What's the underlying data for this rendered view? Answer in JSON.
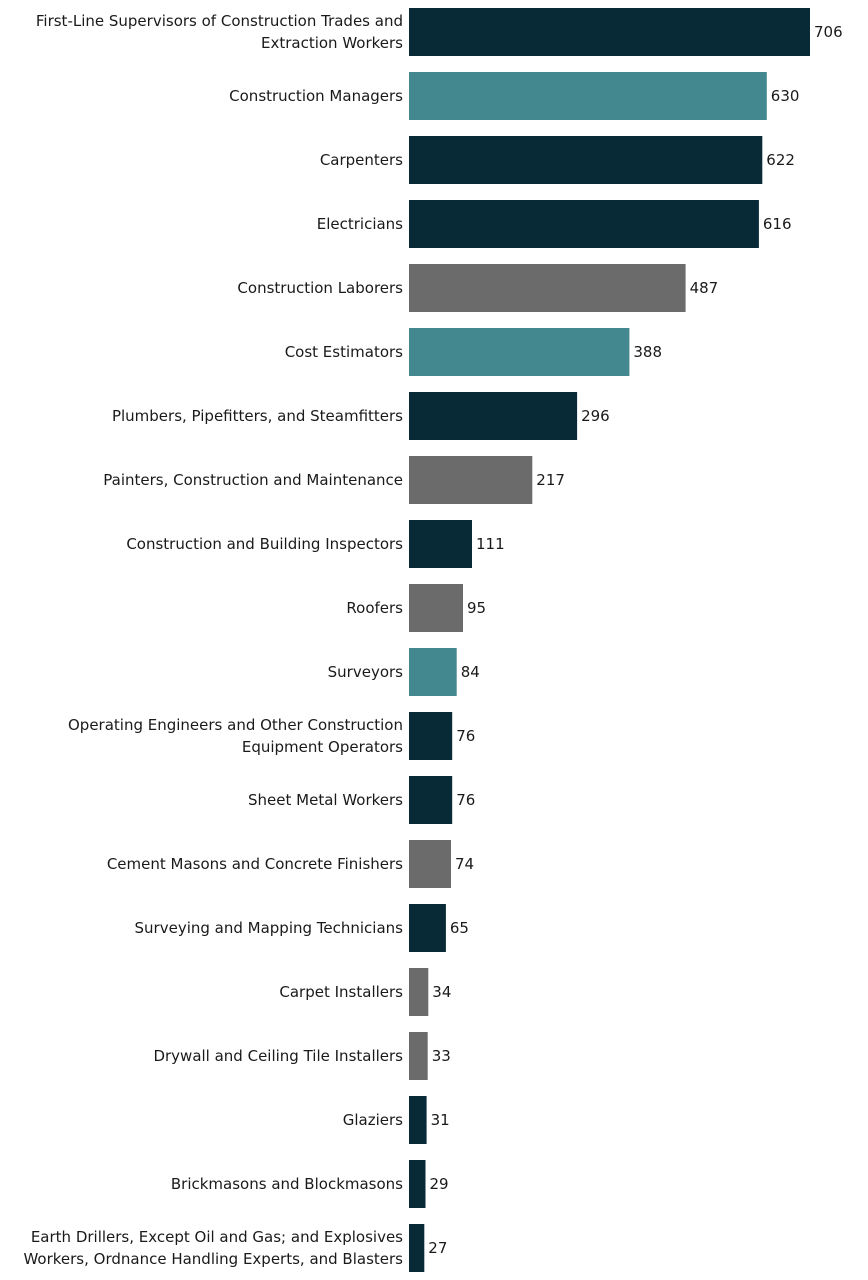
{
  "colors": {
    "dark": "#082A37",
    "teal": "#43878F",
    "gray": "#6B6B6B"
  },
  "chart_data": {
    "type": "bar",
    "orientation": "horizontal",
    "categories": [
      "First-Line Supervisors of Construction Trades and Extraction Workers",
      "Construction Managers",
      "Carpenters",
      "Electricians",
      "Construction Laborers",
      "Cost Estimators",
      "Plumbers, Pipefitters, and Steamfitters",
      "Painters, Construction and Maintenance",
      "Construction and Building Inspectors",
      "Roofers",
      "Surveyors",
      "Operating Engineers and Other Construction Equipment Operators",
      "Sheet Metal Workers",
      "Cement Masons and Concrete Finishers",
      "Surveying and Mapping Technicians",
      "Carpet Installers",
      "Drywall and Ceiling Tile Installers",
      "Glaziers",
      "Brickmasons and Blockmasons",
      "Earth Drillers, Except Oil and Gas; and Explosives Workers, Ordnance Handling Experts, and Blasters"
    ],
    "label_lines": [
      [
        "First-Line Supervisors of Construction Trades and",
        "Extraction Workers"
      ],
      [
        "Construction Managers"
      ],
      [
        "Carpenters"
      ],
      [
        "Electricians"
      ],
      [
        "Construction Laborers"
      ],
      [
        "Cost Estimators"
      ],
      [
        "Plumbers, Pipefitters, and Steamfitters"
      ],
      [
        "Painters, Construction and Maintenance"
      ],
      [
        "Construction and Building Inspectors"
      ],
      [
        "Roofers"
      ],
      [
        "Surveyors"
      ],
      [
        "Operating Engineers and Other Construction",
        "Equipment Operators"
      ],
      [
        "Sheet Metal Workers"
      ],
      [
        "Cement Masons and Concrete Finishers"
      ],
      [
        "Surveying and Mapping Technicians"
      ],
      [
        "Carpet Installers"
      ],
      [
        "Drywall and Ceiling Tile Installers"
      ],
      [
        "Glaziers"
      ],
      [
        "Brickmasons and Blockmasons"
      ],
      [
        "Earth Drillers, Except Oil and Gas; and Explosives",
        "Workers, Ordnance Handling Experts, and Blasters"
      ]
    ],
    "values": [
      706,
      630,
      622,
      616,
      487,
      388,
      296,
      217,
      111,
      95,
      84,
      76,
      76,
      74,
      65,
      34,
      33,
      31,
      29,
      27
    ],
    "bar_colors": [
      "#082A37",
      "#43878F",
      "#082A37",
      "#082A37",
      "#6B6B6B",
      "#43878F",
      "#082A37",
      "#6B6B6B",
      "#082A37",
      "#6B6B6B",
      "#43878F",
      "#082A37",
      "#082A37",
      "#6B6B6B",
      "#082A37",
      "#6B6B6B",
      "#6B6B6B",
      "#082A37",
      "#082A37",
      "#082A37"
    ],
    "title": "",
    "xlabel": "",
    "ylabel": "",
    "xlim": [
      0,
      706
    ],
    "grid": false,
    "legend": "none"
  }
}
